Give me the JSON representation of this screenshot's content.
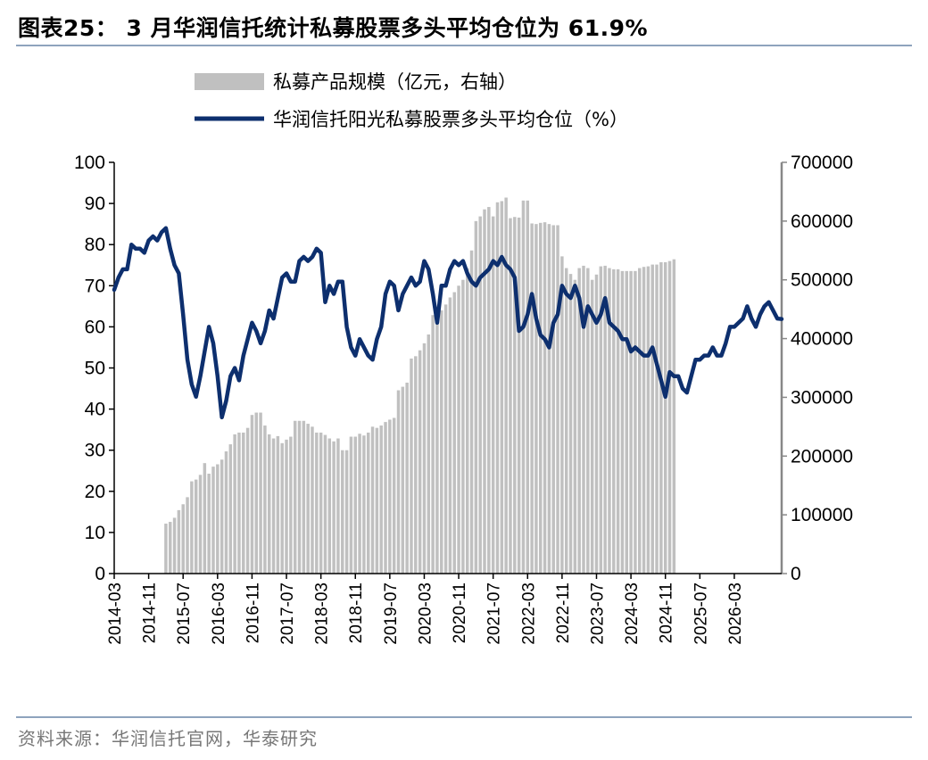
{
  "header": {
    "title": "图表25：  3 月华润信托统计私募股票多头平均仓位为 61.9%"
  },
  "footer": {
    "source": "资料来源：华润信托官网，华泰研究"
  },
  "colors": {
    "bar": "#c0c0c0",
    "line": "#0d2f6e",
    "axis": "#000000",
    "right_axis": "#888888",
    "rule": "#8ea3bd"
  },
  "chart_data": {
    "type": "bar+line",
    "legend_position": "top-center",
    "grid": false,
    "x_tick_labels": [
      "2014-03",
      "2014-11",
      "2015-07",
      "2016-03",
      "2016-11",
      "2017-07",
      "2018-03",
      "2018-11",
      "2019-07",
      "2020-03",
      "2020-11",
      "2021-07",
      "2022-03",
      "2022-11",
      "2023-07",
      "2024-03",
      "2024-11",
      "2025-07",
      "2026-03"
    ],
    "y_left": {
      "ylim": [
        0,
        100
      ],
      "ticks": [
        "0",
        "10",
        "20",
        "30",
        "40",
        "50",
        "60",
        "70",
        "80",
        "90",
        "100"
      ]
    },
    "y_right": {
      "ylim": [
        0,
        700000
      ],
      "ticks": [
        "0",
        "100000",
        "200000",
        "300000",
        "400000",
        "500000",
        "600000",
        "700000"
      ]
    },
    "x_start": "2014-03",
    "series": [
      {
        "name": "私募产品规模（亿元，右轴）",
        "type": "bar",
        "axis": "right",
        "start": "2015-03",
        "values": [
          85000,
          88000,
          95000,
          108000,
          118000,
          130000,
          157000,
          160000,
          168000,
          188000,
          170000,
          182000,
          186000,
          194000,
          208000,
          220000,
          237000,
          240000,
          240000,
          248000,
          270000,
          274000,
          274000,
          252000,
          237000,
          230000,
          234000,
          222000,
          228000,
          233000,
          260000,
          260000,
          260000,
          255000,
          250000,
          240000,
          240000,
          236000,
          230000,
          225000,
          230000,
          210000,
          210000,
          233000,
          233000,
          238000,
          235000,
          240000,
          250000,
          248000,
          252000,
          258000,
          262000,
          265000,
          312000,
          318000,
          325000,
          366000,
          370000,
          380000,
          392000,
          407000,
          440000,
          438000,
          448000,
          458000,
          470000,
          479000,
          490000,
          500000,
          520000,
          550000,
          600000,
          608000,
          620000,
          624000,
          608000,
          632000,
          634000,
          640000,
          605000,
          607000,
          606000,
          635000,
          635000,
          596000,
          595000,
          597000,
          598000,
          595000,
          593000,
          593000,
          540000,
          520000,
          510000,
          500000,
          520000,
          524000,
          520000,
          500000,
          509000,
          523000,
          524000,
          520000,
          518000,
          518000,
          515000,
          515000,
          515000,
          515000,
          520000,
          522000,
          523000,
          526000,
          526000,
          530000,
          530000,
          532000,
          535000
        ]
      },
      {
        "name": "华润信托阳光私募股票多头平均仓位（%）",
        "type": "line",
        "axis": "left",
        "values": [
          69,
          72,
          74,
          74,
          80,
          79,
          79,
          78,
          81,
          82,
          81,
          83,
          84,
          79,
          75,
          73,
          63,
          52,
          46,
          43,
          48,
          54,
          60,
          56,
          48,
          38,
          42,
          48,
          50,
          47,
          53,
          57,
          61,
          59,
          56,
          59,
          64,
          62,
          67,
          72,
          73,
          71,
          71,
          76,
          77,
          76,
          77,
          79,
          78,
          66,
          70,
          68,
          71,
          71,
          60,
          55,
          53,
          57,
          55,
          53,
          52,
          57,
          60,
          68,
          71,
          70,
          64,
          68,
          70,
          72,
          70,
          71,
          76,
          74,
          68,
          61,
          70,
          70,
          74,
          76,
          75,
          76,
          73,
          71,
          70,
          72,
          73,
          74,
          76,
          75,
          77,
          75,
          74,
          72,
          59,
          60,
          63,
          68,
          62,
          58,
          57,
          55,
          61,
          63,
          70,
          68,
          67,
          70,
          67,
          60,
          65,
          63,
          61,
          63,
          67,
          61,
          60,
          59,
          57,
          57,
          54,
          55,
          54,
          53,
          53,
          55,
          51,
          47,
          43,
          49,
          48,
          48,
          45,
          44,
          48,
          52,
          52,
          53,
          53,
          55,
          53,
          53,
          56,
          60,
          60,
          61,
          62,
          65,
          62,
          60,
          63,
          65,
          66,
          64,
          62,
          61.9
        ]
      }
    ]
  }
}
